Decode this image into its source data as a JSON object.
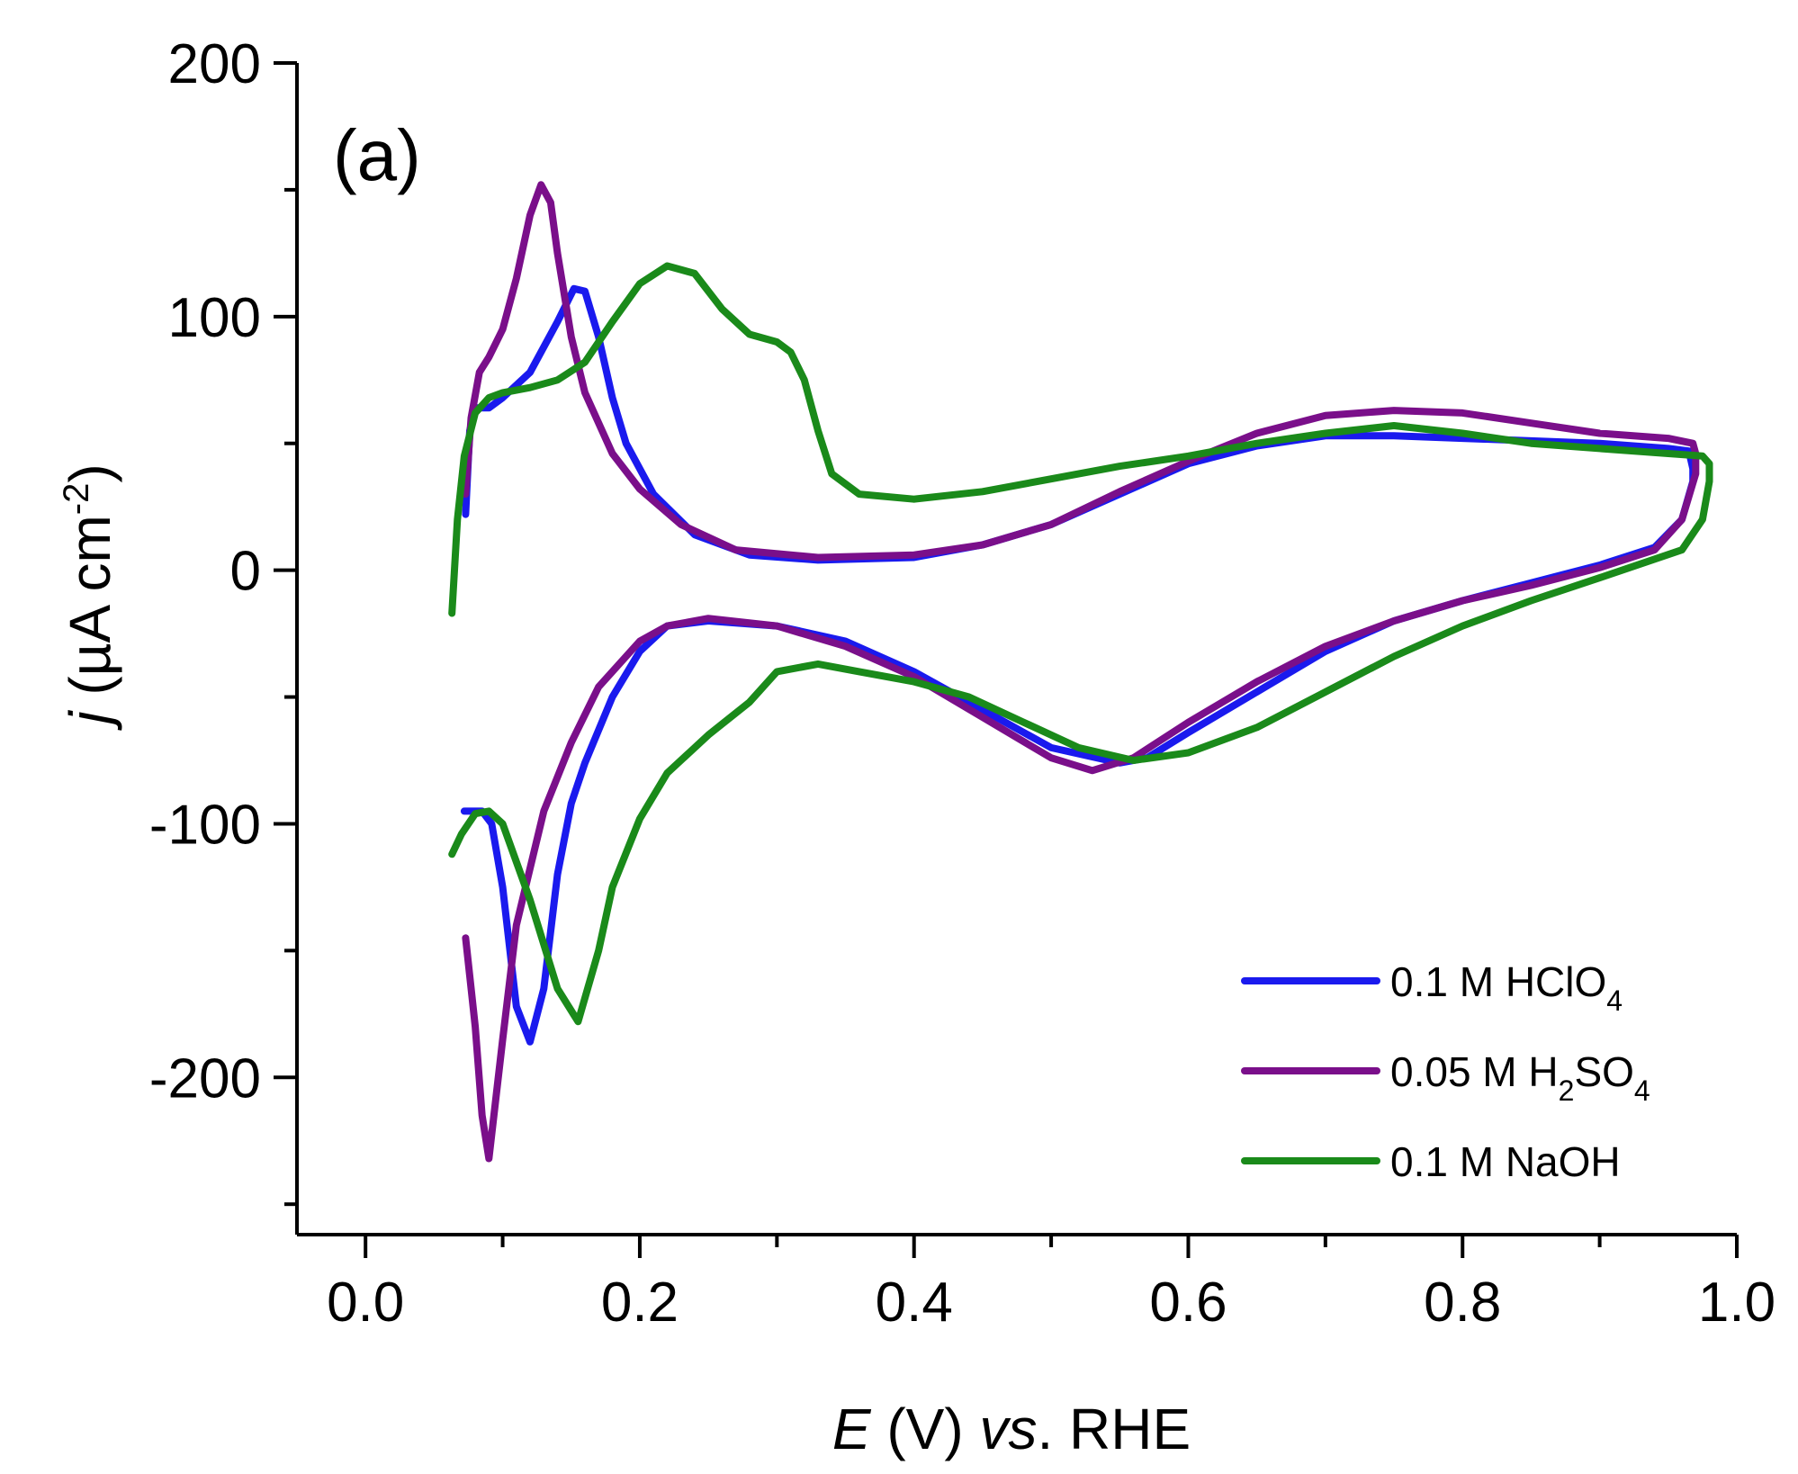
{
  "panel_label": "(a)",
  "chart_data": {
    "type": "line",
    "title": "",
    "xlabel": {
      "italic": "E",
      "plain1": " (V) ",
      "italic2": "vs",
      "plain2": ". RHE"
    },
    "ylabel": {
      "italic": "j",
      "plain": " (µA cm",
      "sup": "-2",
      "close": ")"
    },
    "xlim": [
      -0.05,
      1.0
    ],
    "ylim": [
      -262,
      200
    ],
    "x_ticks": [
      0.0,
      0.2,
      0.4,
      0.6,
      0.8,
      1.0
    ],
    "x_tick_labels": [
      "0.0",
      "0.2",
      "0.4",
      "0.6",
      "0.8",
      "1.0"
    ],
    "y_ticks": [
      -200,
      -100,
      0,
      100,
      200
    ],
    "y_tick_labels": [
      "-200",
      "-100",
      "0",
      "100",
      "200"
    ],
    "grid": false,
    "legend_position": "bottom-right",
    "series": [
      {
        "name": "0.1 M HClO4",
        "legend": {
          "prefix": "0.1 M HClO",
          "sub": "4",
          "suffix": ""
        },
        "color": "#1a1aee",
        "points": [
          [
            0.073,
            22
          ],
          [
            0.076,
            55
          ],
          [
            0.08,
            64
          ],
          [
            0.09,
            64
          ],
          [
            0.1,
            68
          ],
          [
            0.12,
            78
          ],
          [
            0.14,
            98
          ],
          [
            0.152,
            111
          ],
          [
            0.16,
            110
          ],
          [
            0.17,
            92
          ],
          [
            0.18,
            68
          ],
          [
            0.19,
            50
          ],
          [
            0.21,
            30
          ],
          [
            0.24,
            14
          ],
          [
            0.28,
            6
          ],
          [
            0.33,
            4
          ],
          [
            0.4,
            5
          ],
          [
            0.45,
            10
          ],
          [
            0.5,
            18
          ],
          [
            0.55,
            30
          ],
          [
            0.6,
            42
          ],
          [
            0.65,
            49
          ],
          [
            0.7,
            53
          ],
          [
            0.75,
            53
          ],
          [
            0.8,
            52
          ],
          [
            0.85,
            51
          ],
          [
            0.9,
            50
          ],
          [
            0.95,
            48
          ],
          [
            0.965,
            47
          ],
          [
            0.968,
            40
          ],
          [
            0.968,
            35
          ],
          [
            0.96,
            20
          ],
          [
            0.94,
            9
          ],
          [
            0.9,
            2
          ],
          [
            0.85,
            -5
          ],
          [
            0.8,
            -12
          ],
          [
            0.75,
            -20
          ],
          [
            0.7,
            -32
          ],
          [
            0.65,
            -48
          ],
          [
            0.6,
            -64
          ],
          [
            0.57,
            -74
          ],
          [
            0.55,
            -76
          ],
          [
            0.5,
            -70
          ],
          [
            0.45,
            -55
          ],
          [
            0.4,
            -40
          ],
          [
            0.35,
            -28
          ],
          [
            0.3,
            -22
          ],
          [
            0.25,
            -20
          ],
          [
            0.22,
            -22
          ],
          [
            0.2,
            -32
          ],
          [
            0.18,
            -50
          ],
          [
            0.16,
            -76
          ],
          [
            0.15,
            -92
          ],
          [
            0.14,
            -120
          ],
          [
            0.13,
            -165
          ],
          [
            0.12,
            -186
          ],
          [
            0.11,
            -172
          ],
          [
            0.1,
            -125
          ],
          [
            0.092,
            -100
          ],
          [
            0.085,
            -95
          ],
          [
            0.072,
            -95
          ]
        ]
      },
      {
        "name": "0.05 M H2SO4",
        "legend": {
          "prefix": "0.05 M H",
          "sub": "2",
          "suffix": "SO",
          "sub2": "4"
        },
        "color": "#7a0f8a",
        "points": [
          [
            0.073,
            30
          ],
          [
            0.077,
            60
          ],
          [
            0.083,
            78
          ],
          [
            0.09,
            84
          ],
          [
            0.1,
            95
          ],
          [
            0.11,
            115
          ],
          [
            0.12,
            140
          ],
          [
            0.128,
            152
          ],
          [
            0.135,
            145
          ],
          [
            0.14,
            125
          ],
          [
            0.15,
            92
          ],
          [
            0.16,
            70
          ],
          [
            0.18,
            46
          ],
          [
            0.2,
            32
          ],
          [
            0.23,
            18
          ],
          [
            0.27,
            8
          ],
          [
            0.33,
            5
          ],
          [
            0.4,
            6
          ],
          [
            0.45,
            10
          ],
          [
            0.5,
            18
          ],
          [
            0.55,
            31
          ],
          [
            0.6,
            43
          ],
          [
            0.65,
            54
          ],
          [
            0.7,
            61
          ],
          [
            0.75,
            63
          ],
          [
            0.8,
            62
          ],
          [
            0.85,
            58
          ],
          [
            0.9,
            54
          ],
          [
            0.95,
            52
          ],
          [
            0.968,
            50
          ],
          [
            0.97,
            46
          ],
          [
            0.97,
            38
          ],
          [
            0.96,
            20
          ],
          [
            0.94,
            8
          ],
          [
            0.9,
            1
          ],
          [
            0.85,
            -6
          ],
          [
            0.8,
            -12
          ],
          [
            0.75,
            -20
          ],
          [
            0.7,
            -30
          ],
          [
            0.65,
            -44
          ],
          [
            0.6,
            -60
          ],
          [
            0.56,
            -74
          ],
          [
            0.53,
            -79
          ],
          [
            0.5,
            -74
          ],
          [
            0.45,
            -58
          ],
          [
            0.4,
            -42
          ],
          [
            0.35,
            -30
          ],
          [
            0.3,
            -22
          ],
          [
            0.25,
            -19
          ],
          [
            0.22,
            -22
          ],
          [
            0.2,
            -28
          ],
          [
            0.17,
            -46
          ],
          [
            0.15,
            -68
          ],
          [
            0.13,
            -95
          ],
          [
            0.11,
            -140
          ],
          [
            0.1,
            -185
          ],
          [
            0.09,
            -232
          ],
          [
            0.085,
            -215
          ],
          [
            0.08,
            -180
          ],
          [
            0.076,
            -160
          ],
          [
            0.073,
            -145
          ]
        ]
      },
      {
        "name": "0.1 M NaOH",
        "legend": {
          "prefix": "0.1 M NaOH",
          "sub": "",
          "suffix": ""
        },
        "color": "#1a8a1a",
        "points": [
          [
            0.063,
            -17
          ],
          [
            0.067,
            20
          ],
          [
            0.072,
            45
          ],
          [
            0.08,
            62
          ],
          [
            0.09,
            68
          ],
          [
            0.1,
            70
          ],
          [
            0.12,
            72
          ],
          [
            0.14,
            75
          ],
          [
            0.16,
            82
          ],
          [
            0.18,
            98
          ],
          [
            0.2,
            113
          ],
          [
            0.22,
            120
          ],
          [
            0.24,
            117
          ],
          [
            0.26,
            103
          ],
          [
            0.28,
            93
          ],
          [
            0.3,
            90
          ],
          [
            0.31,
            86
          ],
          [
            0.32,
            75
          ],
          [
            0.33,
            55
          ],
          [
            0.34,
            38
          ],
          [
            0.36,
            30
          ],
          [
            0.4,
            28
          ],
          [
            0.45,
            31
          ],
          [
            0.5,
            36
          ],
          [
            0.55,
            41
          ],
          [
            0.6,
            45
          ],
          [
            0.65,
            50
          ],
          [
            0.7,
            54
          ],
          [
            0.75,
            57
          ],
          [
            0.8,
            54
          ],
          [
            0.85,
            50
          ],
          [
            0.9,
            48
          ],
          [
            0.95,
            46
          ],
          [
            0.975,
            45
          ],
          [
            0.98,
            42
          ],
          [
            0.98,
            35
          ],
          [
            0.975,
            20
          ],
          [
            0.96,
            8
          ],
          [
            0.9,
            -3
          ],
          [
            0.85,
            -12
          ],
          [
            0.8,
            -22
          ],
          [
            0.75,
            -34
          ],
          [
            0.7,
            -48
          ],
          [
            0.65,
            -62
          ],
          [
            0.6,
            -72
          ],
          [
            0.56,
            -75
          ],
          [
            0.52,
            -70
          ],
          [
            0.48,
            -60
          ],
          [
            0.44,
            -50
          ],
          [
            0.4,
            -44
          ],
          [
            0.36,
            -40
          ],
          [
            0.33,
            -37
          ],
          [
            0.3,
            -40
          ],
          [
            0.28,
            -52
          ],
          [
            0.25,
            -65
          ],
          [
            0.22,
            -80
          ],
          [
            0.2,
            -98
          ],
          [
            0.18,
            -125
          ],
          [
            0.17,
            -150
          ],
          [
            0.155,
            -178
          ],
          [
            0.14,
            -165
          ],
          [
            0.12,
            -130
          ],
          [
            0.1,
            -100
          ],
          [
            0.09,
            -95
          ],
          [
            0.08,
            -96
          ],
          [
            0.07,
            -104
          ],
          [
            0.063,
            -112
          ]
        ]
      }
    ]
  }
}
